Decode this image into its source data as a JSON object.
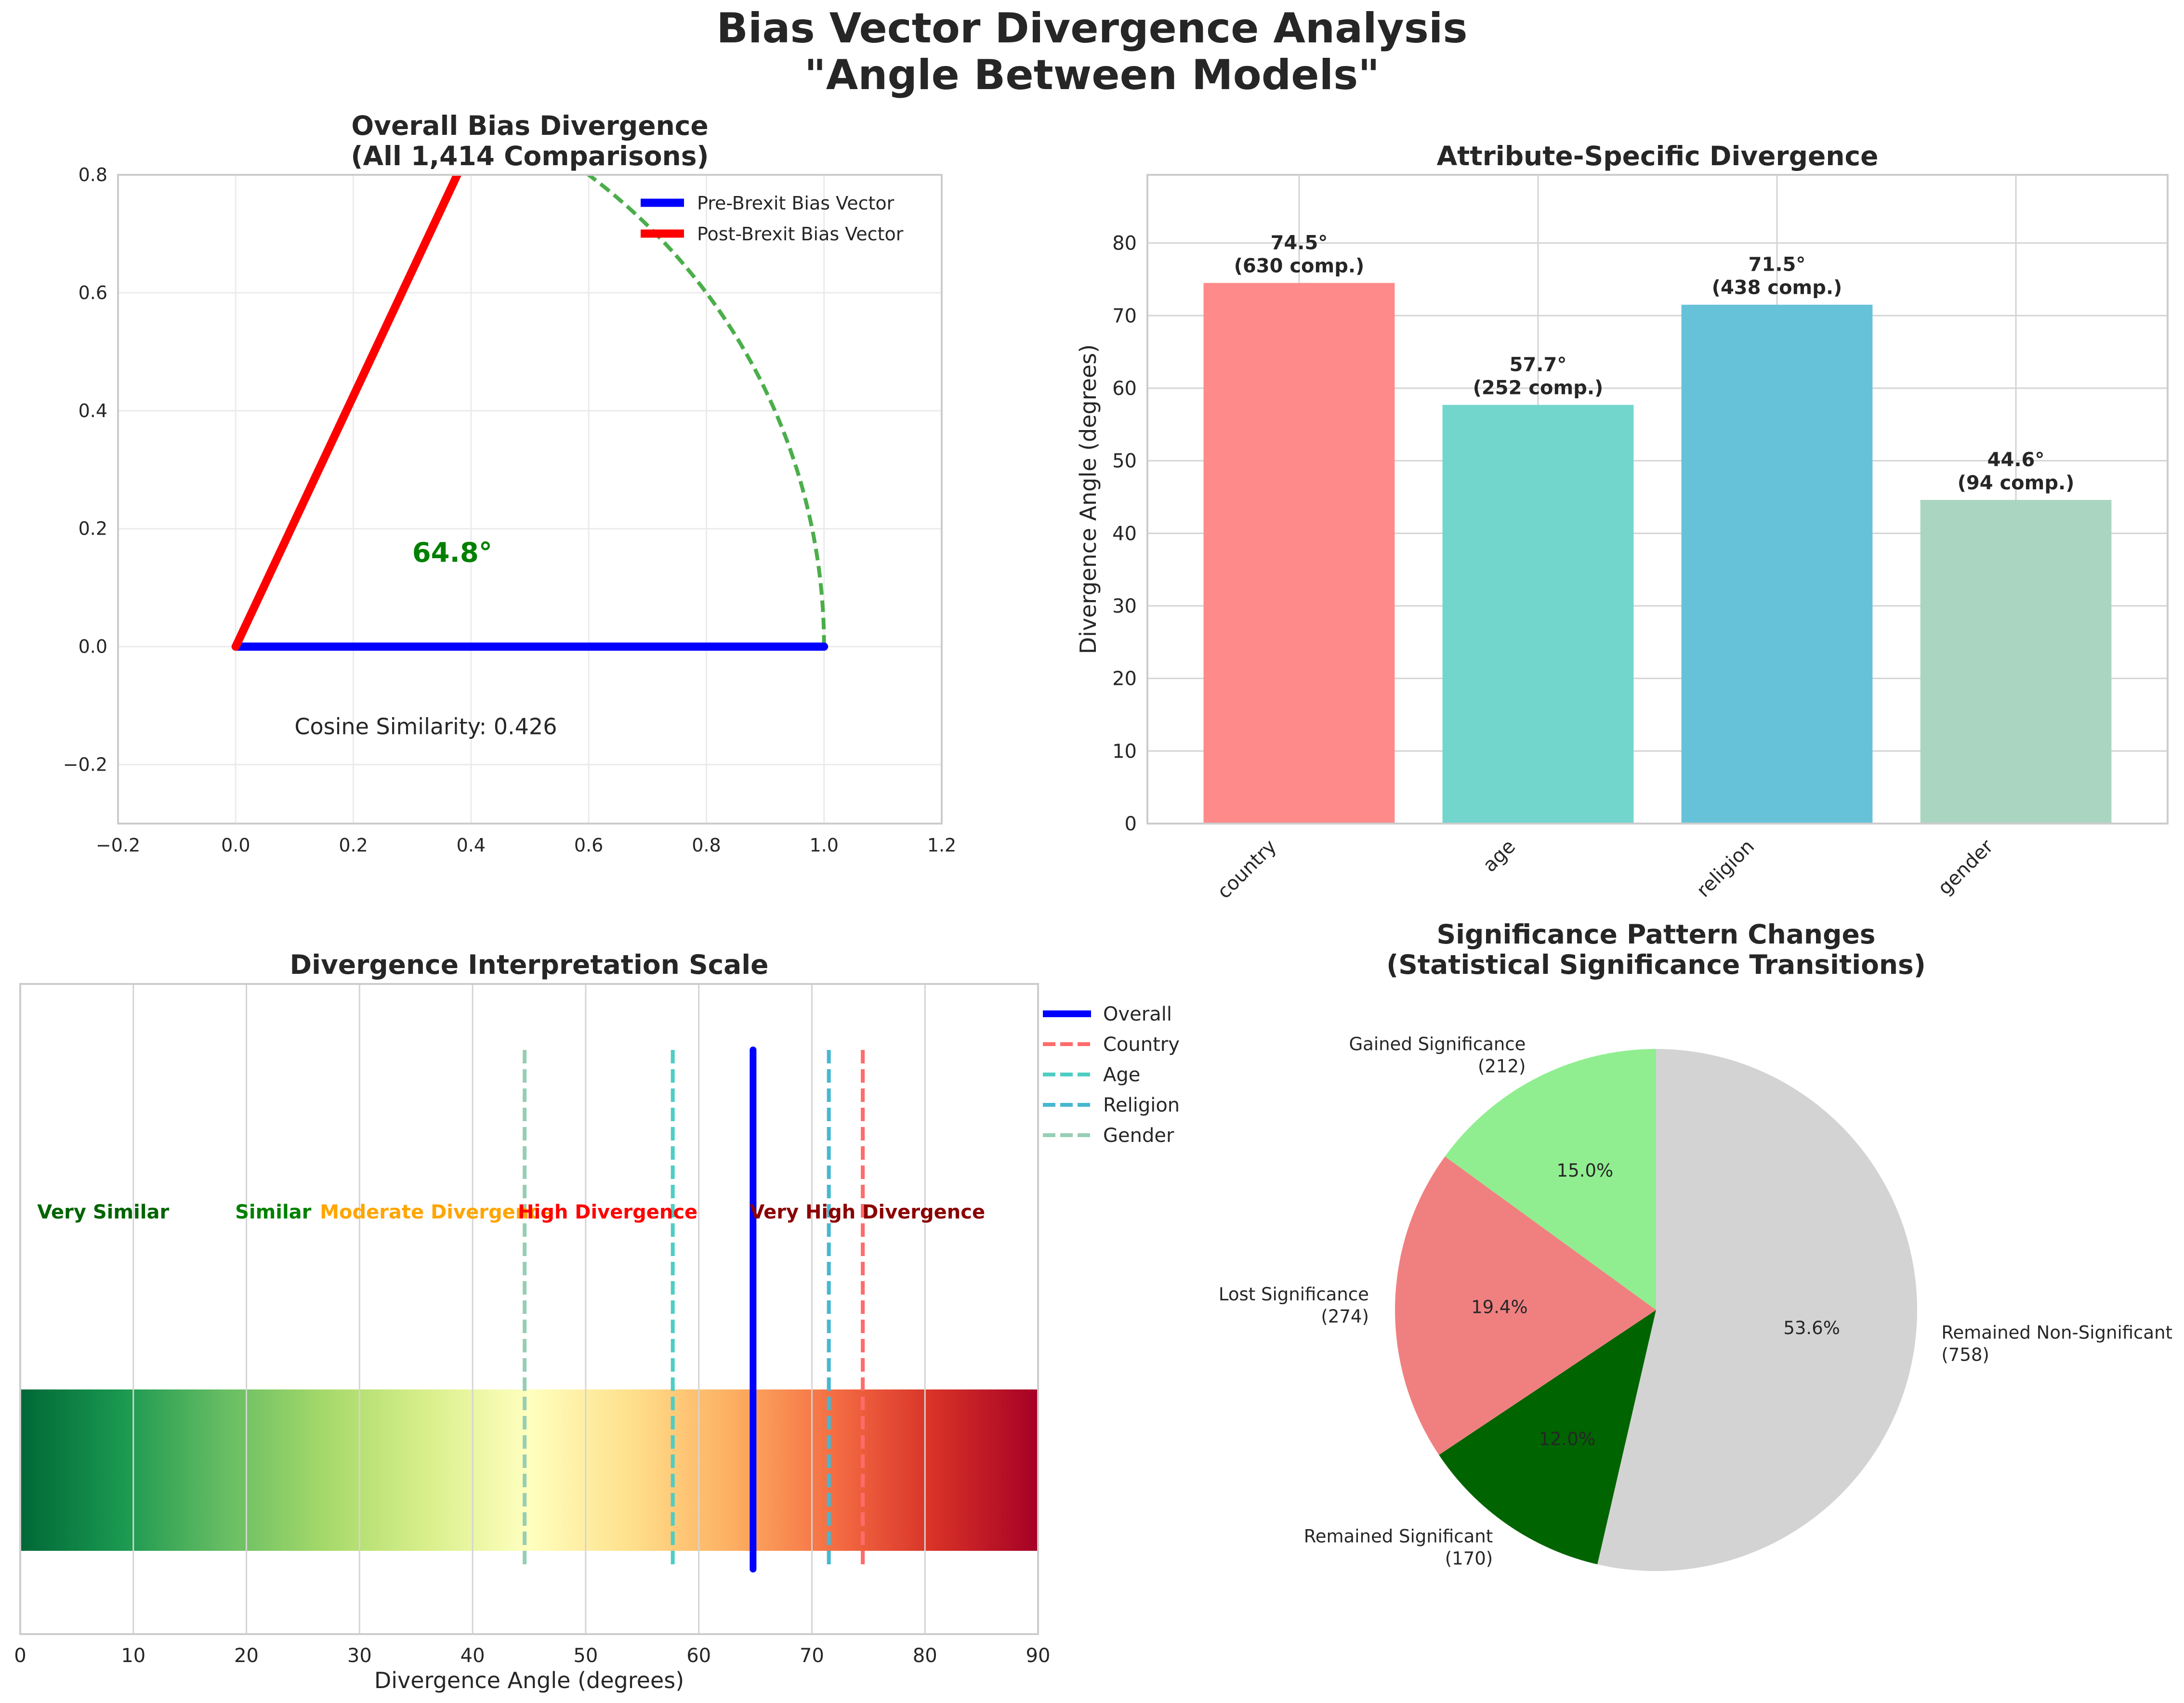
{
  "figure": {
    "title_line1": "Bias Vector Divergence Analysis",
    "title_line2": "\"Angle Between Models\""
  },
  "chart_data": [
    {
      "type": "line",
      "title": "Overall Bias Divergence\n(All 1,414 Comparisons)",
      "xlim": [
        -0.2,
        1.2
      ],
      "ylim": [
        -0.3,
        0.8
      ],
      "x_ticks": [
        -0.2,
        0.0,
        0.2,
        0.4,
        0.6,
        0.8,
        1.0,
        1.2
      ],
      "y_ticks": [
        -0.2,
        0.0,
        0.2,
        0.4,
        0.6,
        0.8
      ],
      "grid": true,
      "legend_position": "top-right",
      "series": [
        {
          "name": "Pre-Brexit Bias Vector",
          "color": "#0000ff",
          "x": [
            0,
            1
          ],
          "y": [
            0,
            0
          ]
        },
        {
          "name": "Post-Brexit Bias Vector",
          "color": "#ff0000",
          "x": [
            0,
            0.426
          ],
          "y": [
            0,
            0.905
          ]
        }
      ],
      "arc": {
        "radius": 1,
        "from_deg": 0,
        "to_deg": 64.8,
        "color": "#2ca02c"
      },
      "angle_label": "64.8°",
      "angle_color": "#008000",
      "annotation": "Cosine Similarity: 0.426"
    },
    {
      "type": "bar",
      "title": "Attribute-Specific Divergence",
      "ylabel": "Divergence Angle (degrees)",
      "ylim": [
        0,
        89.4
      ],
      "y_ticks": [
        0,
        10,
        20,
        30,
        40,
        50,
        60,
        70,
        80
      ],
      "grid": true,
      "categories": [
        "country",
        "age",
        "religion",
        "gender"
      ],
      "values": [
        74.5,
        57.7,
        71.5,
        44.6
      ],
      "colors": [
        "#ff8a8a",
        "#72d6cd",
        "#66c2d8",
        "#aad6c1"
      ],
      "data_labels": [
        {
          "angle": "74.5°",
          "count": "(630 comp.)"
        },
        {
          "angle": "57.7°",
          "count": "(252 comp.)"
        },
        {
          "angle": "71.5°",
          "count": "(438 comp.)"
        },
        {
          "angle": "44.6°",
          "count": "(94 comp.)"
        }
      ]
    },
    {
      "type": "heatmap",
      "title": "Divergence Interpretation Scale",
      "xlabel": "Divergence Angle (degrees)",
      "xlim": [
        0,
        90
      ],
      "x_ticks": [
        0,
        10,
        20,
        30,
        40,
        50,
        60,
        70,
        80,
        90
      ],
      "colormap": "RdYlGn_r",
      "grid": true,
      "legend_position": "top-right",
      "zones": [
        {
          "label": "Very Similar",
          "x": 1.5,
          "color": "#006400"
        },
        {
          "label": "Similar",
          "x": 19,
          "color": "#008000"
        },
        {
          "label": "Moderate Divergence",
          "x": 26.5,
          "color": "#ffa500"
        },
        {
          "label": "High Divergence",
          "x": 44,
          "color": "#ff0000"
        },
        {
          "label": "Very High Divergence",
          "x": 64.5,
          "color": "#8b0000"
        }
      ],
      "series": [
        {
          "name": "Overall",
          "x": 64.8,
          "color": "#0000ff",
          "style": "solid"
        },
        {
          "name": "Country",
          "x": 74.5,
          "color": "#ff6b6b",
          "style": "dashed"
        },
        {
          "name": "Age",
          "x": 57.7,
          "color": "#4ecdc4",
          "style": "dashed"
        },
        {
          "name": "Religion",
          "x": 71.5,
          "color": "#45b7d1",
          "style": "dashed"
        },
        {
          "name": "Gender",
          "x": 44.6,
          "color": "#96ceb4",
          "style": "dashed"
        }
      ]
    },
    {
      "type": "pie",
      "title": "Significance Pattern Changes\n(Statistical Significance Transitions)",
      "start_angle_deg": 90,
      "direction": "counterclockwise",
      "slices": [
        {
          "label": "Gained Significance",
          "count": "(212)",
          "value": 212,
          "pct": "15.0%",
          "color": "#90ee90"
        },
        {
          "label": "Lost Significance",
          "count": "(274)",
          "value": 274,
          "pct": "19.4%",
          "color": "#f08080"
        },
        {
          "label": "Remained Significant",
          "count": "(170)",
          "value": 170,
          "pct": "12.0%",
          "color": "#006400"
        },
        {
          "label": "Remained Non-Significant",
          "count": "(758)",
          "value": 758,
          "pct": "53.6%",
          "color": "#d3d3d3"
        }
      ]
    }
  ]
}
